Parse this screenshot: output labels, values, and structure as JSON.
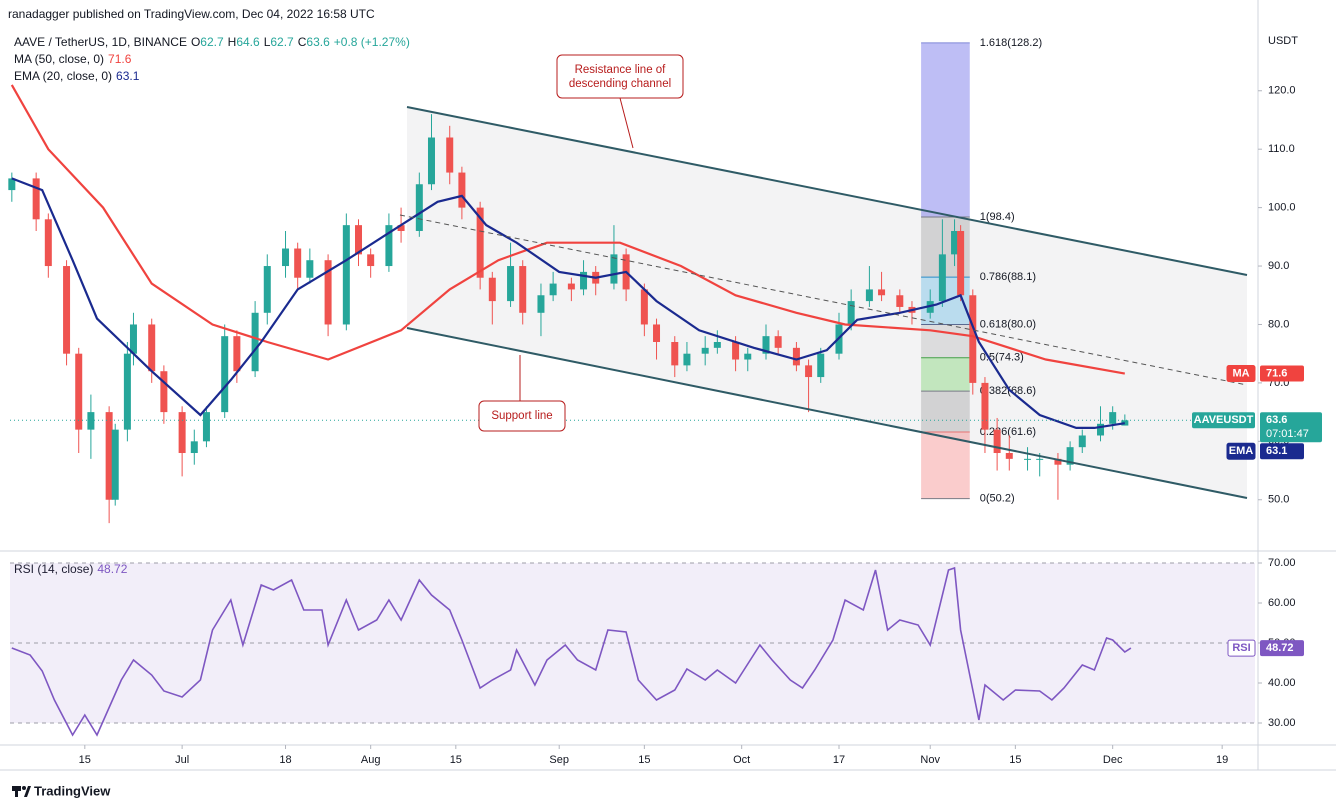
{
  "header": {
    "published": "ranadagger published on TradingView.com, Dec 04, 2022 16:58 UTC",
    "symbol": "AAVE / TetherUS, 1D, BINANCE",
    "ohlc_keys": [
      "O",
      "H",
      "L",
      "C"
    ],
    "change": "+0.8 (+1.27%)"
  },
  "footer": "TradingView",
  "chart_data": [
    {
      "type": "candlestick",
      "unit": "USDT",
      "up_color": "#26a69a",
      "down_color": "#ef5350",
      "xlim": [
        -12.3,
        192.4
      ],
      "xticks": [
        {
          "value": 0,
          "label": "15"
        },
        {
          "value": 16,
          "label": "Jul"
        },
        {
          "value": 33,
          "label": "18"
        },
        {
          "value": 47,
          "label": "Aug"
        },
        {
          "value": 61,
          "label": "15"
        },
        {
          "value": 78,
          "label": "Sep"
        },
        {
          "value": 92,
          "label": "15"
        },
        {
          "value": 108,
          "label": "Oct"
        },
        {
          "value": 124,
          "label": "17"
        },
        {
          "value": 139,
          "label": "Nov"
        },
        {
          "value": 153,
          "label": "15"
        },
        {
          "value": 169,
          "label": "Dec"
        },
        {
          "value": 187,
          "label": "19"
        }
      ],
      "ylim": [
        41.4,
        130.4
      ],
      "yticks": [
        {
          "value": 50,
          "label": "50.0"
        },
        {
          "value": 60,
          "label": "60.0"
        },
        {
          "value": 70,
          "label": "70.0"
        },
        {
          "value": 80,
          "label": "80.0"
        },
        {
          "value": 90,
          "label": "90.0"
        },
        {
          "value": 100,
          "label": "100.0"
        },
        {
          "value": 110,
          "label": "110.0"
        },
        {
          "value": 120,
          "label": "120.0"
        }
      ],
      "symbol_tag": "AAVEUSDT",
      "countdown": "07:01:47",
      "candles": {
        "x": [
          -12,
          -8,
          -6,
          -3,
          -1,
          1,
          4,
          5,
          7,
          8,
          11,
          13,
          16,
          18,
          20,
          23,
          25,
          28,
          30,
          33,
          35,
          37,
          40,
          43,
          45,
          47,
          50,
          52,
          55,
          57,
          60,
          62,
          65,
          67,
          70,
          72,
          75,
          77,
          80,
          82,
          84,
          87,
          89,
          92,
          94,
          97,
          99,
          102,
          104,
          107,
          109,
          112,
          114,
          117,
          119,
          121,
          124,
          126,
          129,
          131,
          134,
          136,
          139,
          141,
          143,
          144,
          146,
          148,
          150,
          152,
          155,
          157,
          160,
          162,
          164,
          167,
          169,
          171
        ],
        "open": [
          103,
          105,
          98,
          90,
          75,
          62,
          65,
          50,
          62,
          75,
          80,
          72,
          65,
          58,
          60,
          65,
          78,
          72,
          82,
          90,
          93,
          88,
          91,
          80,
          97,
          92,
          90,
          97,
          96,
          104,
          112,
          106,
          100,
          88,
          84,
          90,
          82,
          85,
          87,
          86,
          89,
          87,
          92,
          86,
          80,
          77,
          73,
          75,
          76,
          77,
          74,
          75,
          78,
          76,
          73,
          71,
          75,
          80,
          84,
          86,
          85,
          83,
          82,
          84,
          92,
          96,
          85,
          70,
          62,
          58,
          57,
          57,
          57,
          56,
          59,
          61,
          63,
          62.7
        ],
        "high": [
          106,
          106,
          99,
          91,
          76,
          68,
          66,
          63,
          77,
          82,
          81,
          73,
          66,
          62,
          66,
          80,
          79,
          84,
          92,
          96,
          94,
          93,
          92,
          99,
          98,
          93,
          99,
          100,
          106,
          116,
          114,
          107,
          101,
          89,
          94,
          91,
          87,
          89,
          88,
          91,
          90,
          97,
          93,
          87,
          81,
          78,
          77,
          78,
          79,
          78,
          76,
          80,
          79,
          77,
          74,
          76,
          82,
          86,
          90,
          89,
          86,
          84,
          86,
          98,
          98,
          97,
          86,
          71,
          64,
          61,
          59,
          58,
          58,
          60,
          62,
          66,
          66,
          64.6
        ],
        "low": [
          101,
          96,
          88,
          73,
          58,
          57,
          46,
          49,
          60,
          73,
          70,
          63,
          54,
          56,
          59,
          64,
          70,
          71,
          80,
          88,
          86,
          87,
          78,
          79,
          90,
          88,
          89,
          94,
          95,
          103,
          104,
          98,
          86,
          80,
          83,
          80,
          78,
          84,
          84,
          85,
          85,
          86,
          84,
          78,
          74,
          71,
          72,
          73,
          75,
          72,
          72,
          74,
          75,
          72,
          65,
          70,
          74,
          79,
          83,
          84,
          82,
          80,
          81,
          83,
          90,
          84,
          68,
          58,
          55,
          55,
          55,
          54,
          50,
          55,
          58,
          60,
          62,
          62.7
        ],
        "close": [
          105,
          98,
          90,
          75,
          62,
          65,
          50,
          62,
          75,
          80,
          72,
          65,
          58,
          60,
          65,
          78,
          72,
          82,
          90,
          93,
          88,
          91,
          80,
          97,
          92,
          90,
          97,
          96,
          104,
          112,
          106,
          100,
          88,
          84,
          90,
          82,
          85,
          87,
          86,
          89,
          87,
          92,
          86,
          80,
          77,
          73,
          75,
          76,
          77,
          74,
          75,
          78,
          76,
          73,
          71,
          75,
          80,
          84,
          86,
          85,
          83,
          82,
          84,
          92,
          96,
          85,
          70,
          62,
          58,
          57,
          57,
          57,
          56,
          59,
          61,
          63,
          65,
          63.6
        ]
      },
      "series": [
        {
          "name": "MA (50, close, 0)",
          "tag": "MA",
          "color": "#f0433f",
          "x": [
            -12,
            -6,
            3,
            11,
            21,
            30,
            40,
            52,
            60,
            68,
            76,
            88,
            98,
            107,
            117,
            125,
            139,
            146,
            158,
            171
          ],
          "values": [
            121,
            110,
            100,
            87,
            80,
            77,
            74,
            79,
            86,
            91,
            94,
            94,
            90,
            85,
            82,
            80,
            79,
            78,
            74,
            71.6
          ]
        },
        {
          "name": "EMA (20, close, 0)",
          "tag": "EMA",
          "color": "#1a2a8f",
          "x": [
            -12,
            -7,
            -2,
            2,
            11,
            19,
            24,
            29,
            35,
            43,
            52,
            58,
            62,
            66,
            71,
            78,
            84,
            89,
            94,
            101,
            110,
            117,
            122,
            127,
            134,
            140,
            144,
            147,
            152,
            157,
            163,
            166,
            171
          ],
          "values": [
            105,
            103,
            91,
            81,
            72,
            64.5,
            70.5,
            77,
            86,
            91,
            97,
            101,
            102,
            97,
            94,
            89,
            88,
            89,
            84,
            79,
            76,
            74,
            75.6,
            80.8,
            82,
            83.4,
            85,
            77,
            68.8,
            64.5,
            62.3,
            62.3,
            63.1
          ]
        }
      ],
      "fib": {
        "x": [
          137.5,
          145.5
        ],
        "levels": [
          {
            "value": 128.2,
            "label": "1.618(128.2)",
            "color": "#7f86d8"
          },
          {
            "value": 98.4,
            "label": "1(98.4)",
            "color": "#787b86"
          },
          {
            "value": 88.1,
            "label": "0.786(88.1)",
            "color": "#2a8bc8"
          },
          {
            "value": 80.0,
            "label": "0.618(80.0)",
            "color": "#5a6a90"
          },
          {
            "value": 74.3,
            "label": "0.5(74.3)",
            "color": "#43a047"
          },
          {
            "value": 68.6,
            "label": "0.382(68.6)",
            "color": "#787b86"
          },
          {
            "value": 61.6,
            "label": "0.236(61.6)",
            "color": "#e57373"
          },
          {
            "value": 50.2,
            "label": "0(50.2)",
            "color": "#787b86"
          }
        ],
        "band_colors": [
          "rgba(92,92,230,0.4)",
          "rgba(150,150,150,0.35)",
          "rgba(100,185,230,0.4)",
          "rgba(150,150,150,0.25)",
          "rgba(120,210,110,0.4)",
          "rgba(150,150,150,0.35)",
          "rgba(240,110,110,0.35)"
        ]
      },
      "annotations": [
        {
          "lines": [
            "Resistance line of",
            "descending channel"
          ]
        },
        {
          "lines": [
            "Support line"
          ]
        }
      ]
    },
    {
      "type": "line",
      "ylim": [
        24.5,
        72.75
      ],
      "yticks": [
        {
          "value": 30,
          "label": "30.00"
        },
        {
          "value": 40,
          "label": "40.00"
        },
        {
          "value": 50,
          "label": "50.00"
        },
        {
          "value": 60,
          "label": "60.00"
        },
        {
          "value": 70,
          "label": "70.00"
        }
      ],
      "levels": [
        30,
        50,
        70
      ],
      "band_color": "rgba(126,87,194,0.1)",
      "series": [
        {
          "name": "RSI (14, close)",
          "tag": "RSI",
          "color": "#7e57c2",
          "x": [
            -12,
            -9,
            -7,
            -5,
            -2,
            0,
            2,
            6,
            8,
            11,
            13,
            16,
            19,
            21,
            24,
            26,
            29,
            31,
            34,
            36,
            39,
            40,
            43,
            45,
            48,
            50,
            52,
            55,
            57,
            60,
            62,
            65,
            67,
            70,
            71,
            74,
            76,
            79,
            81,
            84,
            86,
            89,
            91,
            94,
            97,
            99,
            102,
            104,
            107,
            111,
            113,
            116,
            118,
            120,
            123,
            125,
            128,
            130,
            132,
            134,
            137,
            139,
            142,
            143,
            144,
            146,
            147,
            148,
            151,
            153,
            157,
            159,
            161,
            164,
            166,
            168,
            169,
            171,
            172
          ],
          "values": [
            48.75,
            47,
            43,
            35.75,
            27,
            32,
            27,
            40.75,
            45.75,
            42,
            38,
            36.5,
            40.75,
            53.25,
            60.75,
            49.5,
            64.5,
            63.25,
            65.75,
            58.25,
            58.25,
            49.5,
            60.75,
            53.25,
            55.75,
            60.75,
            55.75,
            65.75,
            62,
            58.25,
            50.75,
            38.75,
            40.75,
            43.25,
            48.25,
            39.5,
            45.75,
            49.5,
            45.75,
            43.25,
            53.25,
            52.75,
            40.75,
            35.75,
            38.25,
            43.5,
            40.75,
            43.25,
            40,
            49.5,
            45.75,
            40.75,
            38.75,
            43.25,
            50.75,
            60.75,
            58.25,
            68.25,
            53.25,
            55.75,
            54.5,
            49.5,
            68.25,
            68.75,
            53.25,
            38.25,
            30.75,
            39.5,
            35.75,
            38.25,
            38,
            35.75,
            38.75,
            44.5,
            43.25,
            51.25,
            50.75,
            47.75,
            48.72
          ]
        }
      ]
    }
  ]
}
